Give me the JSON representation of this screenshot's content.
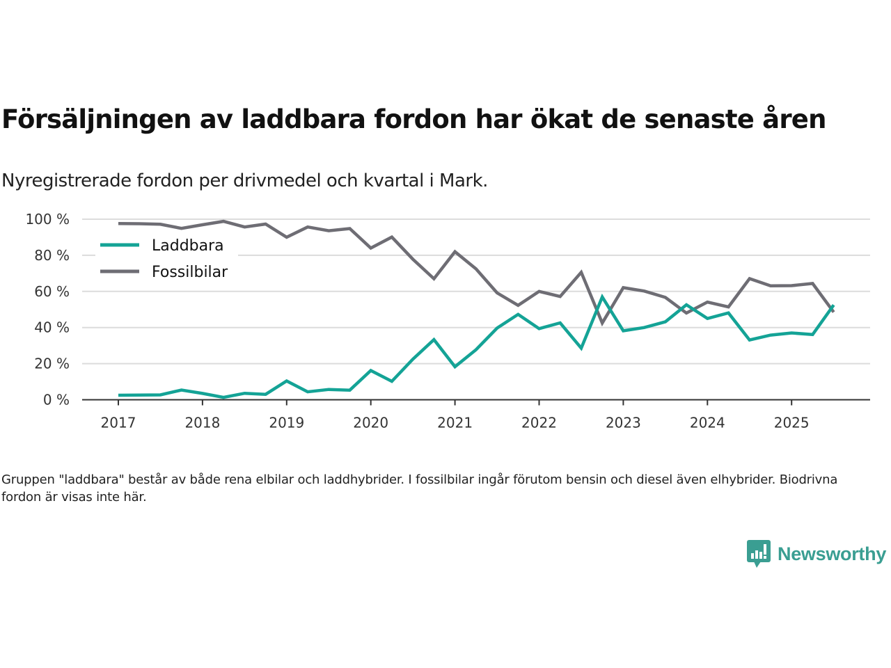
{
  "title": "Försäljningen av laddbara fordon har ökat de senaste åren",
  "subtitle": "Nyregistrerade fordon per drivmedel och kvartal i Mark.",
  "note": "Gruppen \"laddbara\" består av både rena elbilar och laddhybrider. I fossilbilar ingår förutom bensin och diesel även elhybrider. Biodrivna fordon är visas inte här.",
  "brand": {
    "name": "Newsworthy",
    "icon": "bar-chart-speech-bubble-icon",
    "color": "#3a9e92"
  },
  "chart_data": {
    "type": "line",
    "title": "Försäljningen av laddbara fordon har ökat de senaste åren",
    "subtitle": "Nyregistrerade fordon per drivmedel och kvartal i Mark.",
    "xlabel": "",
    "ylabel": "",
    "x_start": 2017,
    "x_step": 0.25,
    "xlim": [
      2016.6,
      2025.9
    ],
    "ylim": [
      0,
      100
    ],
    "y_ticks": [
      0,
      20,
      40,
      60,
      80,
      100
    ],
    "y_tick_labels": [
      "0 %",
      "20 %",
      "40 %",
      "60 %",
      "80 %",
      "100 %"
    ],
    "x_ticks": [
      2017,
      2018,
      2019,
      2020,
      2021,
      2022,
      2023,
      2024,
      2025
    ],
    "x_tick_labels": [
      "2017",
      "2018",
      "2019",
      "2020",
      "2021",
      "2022",
      "2023",
      "2024",
      "2025"
    ],
    "grid": true,
    "legend_position": "top-left",
    "series": [
      {
        "name": "Laddbara",
        "color": "#14a396",
        "values": [
          2.5,
          2.6,
          2.7,
          5.4,
          3.5,
          1.3,
          3.6,
          3.0,
          10.4,
          4.4,
          5.7,
          5.3,
          16.2,
          10.2,
          22.5,
          33.3,
          18.3,
          27.7,
          39.7,
          47.3,
          39.4,
          42.6,
          28.6,
          56.9,
          38.2,
          40.0,
          43.2,
          52.6,
          45.0,
          48.1,
          33.1,
          35.8,
          37.0,
          36.1,
          52.5
        ]
      },
      {
        "name": "Fossilbilar",
        "color": "#6e6d74",
        "values": [
          97.6,
          97.5,
          97.2,
          94.9,
          96.9,
          98.8,
          95.7,
          97.3,
          90.0,
          95.7,
          93.6,
          94.8,
          84.0,
          90.1,
          77.8,
          67.0,
          82.0,
          72.5,
          59.2,
          52.3,
          60.0,
          57.2,
          70.6,
          42.5,
          62.1,
          60.2,
          56.7,
          48.0,
          54.1,
          51.4,
          67.1,
          63.1,
          63.2,
          64.4,
          48.5
        ]
      }
    ]
  }
}
